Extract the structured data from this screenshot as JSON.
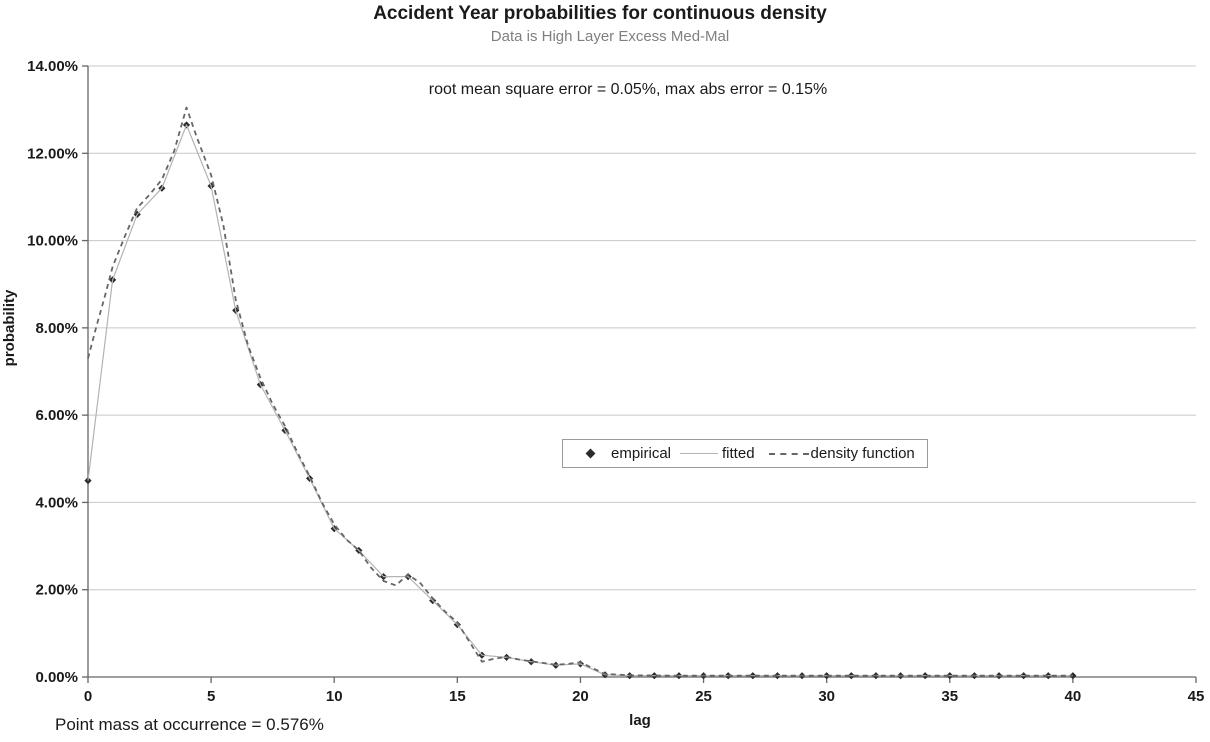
{
  "chart_data": {
    "type": "line",
    "title": "Accident Year probabilities for continuous density",
    "subtitle": "Data is High Layer Excess Med-Mal",
    "annotation": "root mean square error = 0.05%, max abs error = 0.15%",
    "footnote": "Point mass at occurrence = 0.576%",
    "xlabel": "lag",
    "ylabel": "probability",
    "xlim": [
      0,
      45
    ],
    "ylim": [
      0,
      14
    ],
    "grid": "horizontal",
    "legend_position": "inside-middle",
    "x_ticks": {
      "values": [
        0,
        5,
        10,
        15,
        20,
        25,
        30,
        35,
        40,
        45
      ],
      "labels": [
        "0",
        "5",
        "10",
        "15",
        "20",
        "25",
        "30",
        "35",
        "40",
        "45"
      ]
    },
    "y_ticks": {
      "values": [
        0,
        2,
        4,
        6,
        8,
        10,
        12,
        14
      ],
      "labels": [
        "0.00%",
        "2.00%",
        "4.00%",
        "6.00%",
        "8.00%",
        "10.00%",
        "12.00%",
        "14.00%"
      ]
    },
    "series": [
      {
        "name": "empirical",
        "type": "scatter",
        "marker": "diamond",
        "color": "#2b2b2b",
        "x": [
          0,
          1,
          2,
          3,
          4,
          5,
          6,
          7,
          8,
          9,
          10,
          11,
          12,
          13,
          14,
          15,
          16,
          17,
          18,
          19,
          20,
          21,
          22,
          23,
          24,
          25,
          26,
          27,
          28,
          29,
          30,
          31,
          32,
          33,
          34,
          35,
          36,
          37,
          38,
          39,
          40
        ],
        "values": [
          4.5,
          9.1,
          10.6,
          11.2,
          12.65,
          11.25,
          8.4,
          6.7,
          5.65,
          4.55,
          3.4,
          2.9,
          2.3,
          2.3,
          1.75,
          1.2,
          0.5,
          0.45,
          0.35,
          0.27,
          0.3,
          0.05,
          0.03,
          0.03,
          0.03,
          0.03,
          0.03,
          0.03,
          0.03,
          0.03,
          0.03,
          0.03,
          0.03,
          0.03,
          0.03,
          0.03,
          0.03,
          0.03,
          0.03,
          0.03,
          0.03
        ]
      },
      {
        "name": "fitted",
        "type": "line",
        "dash": false,
        "color": "#b3b3b3",
        "x": [
          0,
          1,
          2,
          3,
          4,
          5,
          6,
          7,
          8,
          9,
          10,
          11,
          12,
          13,
          14,
          15,
          16,
          17,
          18,
          19,
          20,
          21,
          22,
          23,
          24,
          25,
          26,
          27,
          28,
          29,
          30,
          31,
          32,
          33,
          34,
          35,
          36,
          37,
          38,
          39,
          40
        ],
        "values": [
          4.5,
          9.1,
          10.6,
          11.2,
          12.65,
          11.25,
          8.4,
          6.7,
          5.65,
          4.55,
          3.4,
          2.9,
          2.3,
          2.3,
          1.75,
          1.2,
          0.5,
          0.45,
          0.35,
          0.27,
          0.3,
          0.05,
          0.03,
          0.03,
          0.03,
          0.03,
          0.03,
          0.03,
          0.03,
          0.03,
          0.03,
          0.03,
          0.03,
          0.03,
          0.03,
          0.03,
          0.03,
          0.03,
          0.03,
          0.03,
          0.03
        ]
      },
      {
        "name": "density function",
        "type": "line",
        "dash": true,
        "color": "#666666",
        "x": [
          0,
          0.35,
          0.7,
          1,
          1.5,
          2,
          2.5,
          3,
          3.5,
          4,
          4.4,
          5,
          5.5,
          6,
          6.5,
          7,
          7.5,
          8,
          8.5,
          9,
          9.5,
          10,
          10.5,
          11,
          11.5,
          12,
          12.5,
          13,
          13.5,
          14,
          14.5,
          15,
          15.5,
          16,
          16.5,
          17,
          17.5,
          18,
          18.5,
          19,
          19.5,
          20,
          20.5,
          21,
          22,
          24,
          26,
          28,
          30,
          32,
          34,
          36,
          38,
          40
        ],
        "values": [
          7.3,
          8.05,
          8.75,
          9.4,
          10.1,
          10.75,
          11.05,
          11.4,
          12.05,
          13.05,
          12.4,
          11.5,
          10.35,
          8.65,
          7.6,
          6.85,
          6.25,
          5.75,
          5.15,
          4.6,
          4.0,
          3.5,
          3.15,
          2.9,
          2.5,
          2.2,
          2.1,
          2.35,
          2.15,
          1.8,
          1.5,
          1.25,
          0.8,
          0.35,
          0.42,
          0.46,
          0.4,
          0.36,
          0.32,
          0.28,
          0.3,
          0.34,
          0.2,
          0.07,
          0.04,
          0.03,
          0.03,
          0.03,
          0.03,
          0.03,
          0.03,
          0.03,
          0.03,
          0.03
        ]
      }
    ],
    "colors": {
      "background": "#ffffff",
      "gridline": "#c8c8c8",
      "axis": "#666666",
      "tick_text": "#1a1a1a",
      "subtitle_text": "#7f7f7f",
      "legend_border": "#9a9a9a"
    }
  }
}
